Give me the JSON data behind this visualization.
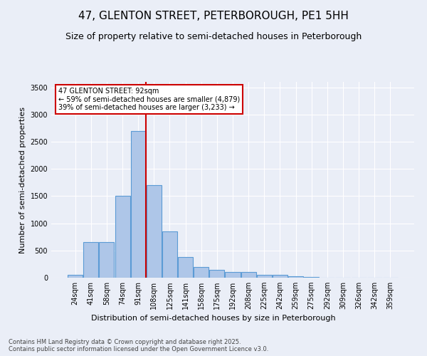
{
  "title": "47, GLENTON STREET, PETERBOROUGH, PE1 5HH",
  "subtitle": "Size of property relative to semi-detached houses in Peterborough",
  "xlabel": "Distribution of semi-detached houses by size in Peterborough",
  "ylabel": "Number of semi-detached properties",
  "footnote": "Contains HM Land Registry data © Crown copyright and database right 2025.\nContains public sector information licensed under the Open Government Licence v3.0.",
  "categories": [
    "24sqm",
    "41sqm",
    "58sqm",
    "74sqm",
    "91sqm",
    "108sqm",
    "125sqm",
    "141sqm",
    "158sqm",
    "175sqm",
    "192sqm",
    "208sqm",
    "225sqm",
    "242sqm",
    "259sqm",
    "275sqm",
    "292sqm",
    "309sqm",
    "326sqm",
    "342sqm",
    "359sqm"
  ],
  "values": [
    50,
    650,
    650,
    1500,
    2700,
    1700,
    850,
    380,
    200,
    150,
    100,
    100,
    50,
    50,
    20,
    10,
    5,
    2,
    1,
    1,
    0
  ],
  "bar_color": "#aec6e8",
  "bar_edge_color": "#5b9bd5",
  "bar_edge_width": 0.8,
  "red_line_index": 4,
  "red_line_color": "#cc0000",
  "annotation_text": "47 GLENTON STREET: 92sqm\n← 59% of semi-detached houses are smaller (4,879)\n39% of semi-detached houses are larger (3,233) →",
  "annotation_box_color": "#ffffff",
  "annotation_box_edge": "#cc0000",
  "ylim": [
    0,
    3600
  ],
  "yticks": [
    0,
    500,
    1000,
    1500,
    2000,
    2500,
    3000,
    3500
  ],
  "bg_color": "#eaeef7",
  "plot_bg_color": "#eaeef7",
  "title_fontsize": 11,
  "subtitle_fontsize": 9,
  "axis_label_fontsize": 8,
  "tick_fontsize": 7,
  "footnote_fontsize": 6
}
